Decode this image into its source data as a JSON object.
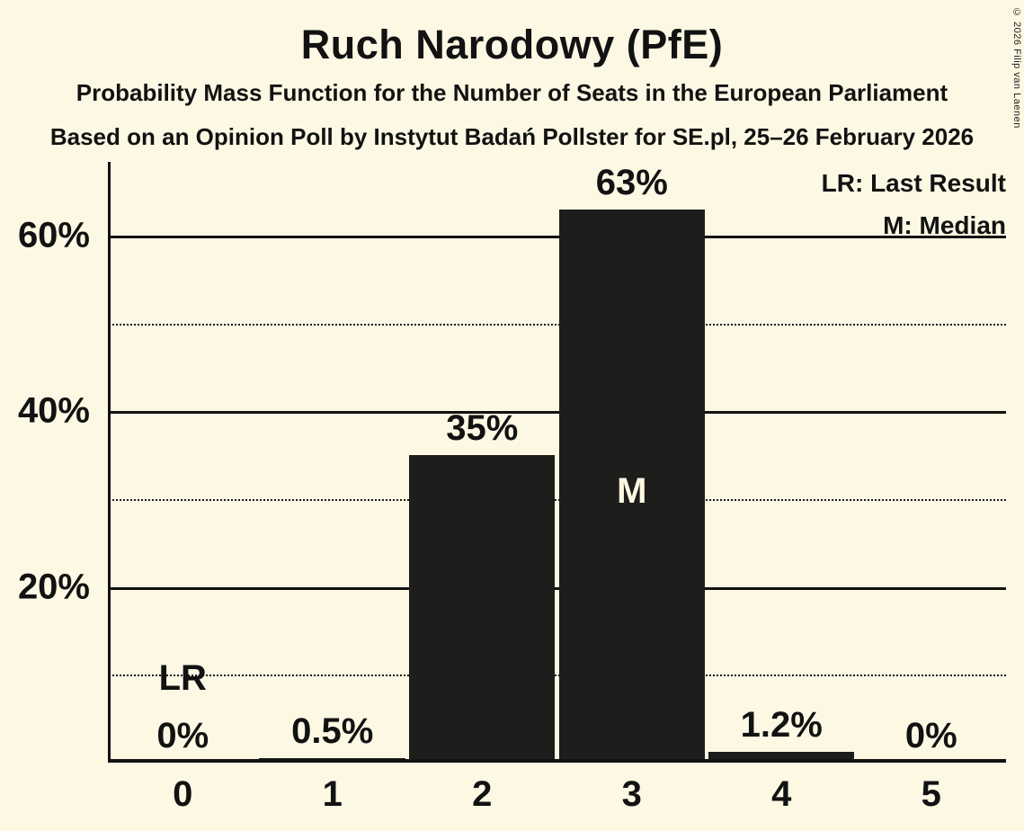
{
  "page": {
    "background_color": "#FCF8E3",
    "bar_color": "#1D1D1B",
    "text_color": "#121212"
  },
  "header": {
    "title": "Ruch Narodowy (PfE)",
    "subtitle1": "Probability Mass Function for the Number of Seats in the European Parliament",
    "subtitle2": "Based on an Opinion Poll by Instytut Badań Pollster for SE.pl, 25–26 February 2026",
    "copyright": "© 2026 Filip van Laenen"
  },
  "legend": {
    "lr": "LR: Last Result",
    "m": "M: Median"
  },
  "chart_data": {
    "type": "bar",
    "title": "Ruch Narodowy (PfE)",
    "subtitle": "Probability Mass Function for the Number of Seats in the European Parliament",
    "source_line": "Based on an Opinion Poll by Instytut Badań Pollster for SE.pl, 25–26 February 2026",
    "categories": [
      "0",
      "1",
      "2",
      "3",
      "4",
      "5"
    ],
    "values": [
      0,
      0.5,
      35,
      63,
      1.2,
      0
    ],
    "labels": [
      "0%",
      "0.5%",
      "35%",
      "63%",
      "1.2%",
      "0%"
    ],
    "xlabel": "",
    "ylabel": "",
    "ylim": [
      0,
      68.4
    ],
    "yticks": [
      20,
      40,
      60
    ],
    "ytick_labels": [
      "20%",
      "40%",
      "60%"
    ],
    "solid_gridlines": [
      20,
      40,
      60
    ],
    "dotted_gridlines": [
      10,
      30,
      50
    ],
    "grid": true,
    "legend_entries": [
      "LR: Last Result",
      "M: Median"
    ],
    "legend_position": "top-right",
    "median_seat_index": 3,
    "median_marker": "M",
    "last_result_seat_index": 0,
    "last_result_marker": "LR"
  }
}
